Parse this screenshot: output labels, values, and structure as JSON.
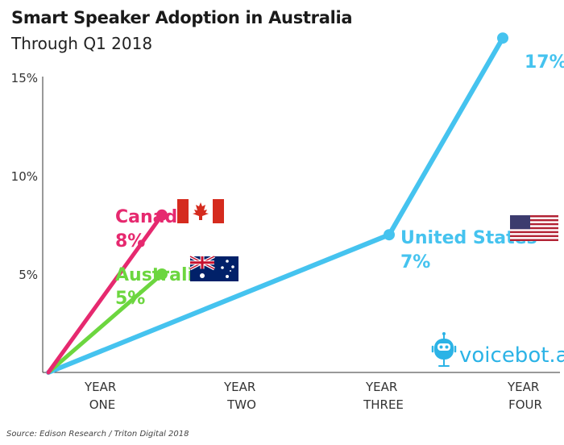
{
  "header": {
    "title": "Smart Speaker Adoption in Australia",
    "subtitle": "Through Q1 2018"
  },
  "source": "Source: Edison Research / Triton Digital 2018",
  "logo": {
    "text": "voicebot.ai",
    "icon": "robot-microphone-icon"
  },
  "colors": {
    "canada": "#e6296f",
    "australia": "#6cd63f",
    "united_states": "#45c3ef"
  },
  "chart_data": {
    "type": "line",
    "title": "Smart Speaker Adoption in Australia",
    "subtitle": "Through Q1 2018",
    "categories": [
      "YEAR ONE",
      "YEAR TWO",
      "YEAR THREE",
      "YEAR FOUR"
    ],
    "x_tick_labels": [
      [
        "YEAR",
        "ONE"
      ],
      [
        "YEAR",
        "TWO"
      ],
      [
        "YEAR",
        "THREE"
      ],
      [
        "YEAR",
        "FOUR"
      ]
    ],
    "y_tick_labels": [
      "5%",
      "10%",
      "15%"
    ],
    "ylim": [
      0,
      17
    ],
    "grid": false,
    "series": [
      {
        "name": "Canada",
        "value_label": "8%",
        "flag": "canada-flag-icon",
        "x": [
          0,
          1
        ],
        "y": [
          0,
          8
        ]
      },
      {
        "name": "Australia",
        "value_label": "5%",
        "flag": "australia-flag-icon",
        "x": [
          0,
          1
        ],
        "y": [
          0,
          5
        ]
      },
      {
        "name": "United States",
        "value_label": "7%",
        "end_label": "17%",
        "flag": "usa-flag-icon",
        "x": [
          0,
          3,
          4
        ],
        "y": [
          0,
          7,
          17
        ]
      }
    ]
  }
}
